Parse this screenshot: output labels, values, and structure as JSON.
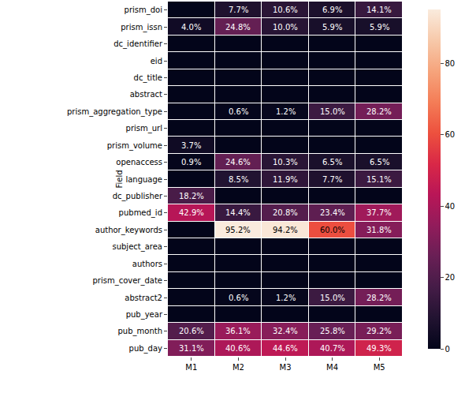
{
  "chart_data": {
    "type": "heatmap",
    "x_label": "",
    "y_label": "Field",
    "columns": [
      "M1",
      "M2",
      "M3",
      "M4",
      "M5"
    ],
    "rows": [
      "prism_doi",
      "prism_issn",
      "dc_identifier",
      "eid",
      "dc_title",
      "abstract",
      "prism_aggregation_type",
      "prism_url",
      "prism_volume",
      "openaccess",
      "language",
      "dc_publisher",
      "pubmed_id",
      "author_keywords",
      "subject_area",
      "authors",
      "prism_cover_date",
      "abstract2",
      "pub_year",
      "pub_month",
      "pub_day"
    ],
    "cells": [
      [
        0,
        7.7,
        10.6,
        6.9,
        14.1
      ],
      [
        4.0,
        24.8,
        10.0,
        5.9,
        5.9
      ],
      [
        0,
        0,
        0,
        0,
        0
      ],
      [
        0,
        0,
        0,
        0,
        0
      ],
      [
        0,
        0,
        0,
        0,
        0
      ],
      [
        0,
        0,
        0,
        0,
        0
      ],
      [
        0,
        0.6,
        1.2,
        15.0,
        28.2
      ],
      [
        0,
        0,
        0,
        0,
        0
      ],
      [
        3.7,
        0,
        0,
        0,
        0
      ],
      [
        0.9,
        24.6,
        10.3,
        6.5,
        6.5
      ],
      [
        0,
        8.5,
        11.9,
        7.7,
        15.1
      ],
      [
        18.2,
        0,
        0,
        0,
        0
      ],
      [
        42.9,
        14.4,
        20.8,
        23.4,
        37.7
      ],
      [
        0,
        95.2,
        94.2,
        60.0,
        31.8
      ],
      [
        0,
        0,
        0,
        0,
        0
      ],
      [
        0,
        0,
        0,
        0,
        0
      ],
      [
        0,
        0,
        0,
        0,
        0
      ],
      [
        0,
        0.6,
        1.2,
        15.0,
        28.2
      ],
      [
        0,
        0,
        0,
        0,
        0
      ],
      [
        20.6,
        36.1,
        32.4,
        25.8,
        29.2
      ],
      [
        31.1,
        40.6,
        44.6,
        40.7,
        49.3
      ]
    ],
    "value_labels": [
      [
        null,
        "7.7%",
        "10.6%",
        "6.9%",
        "14.1%"
      ],
      [
        "4.0%",
        "24.8%",
        "10.0%",
        "5.9%",
        "5.9%"
      ],
      [
        null,
        null,
        null,
        null,
        null
      ],
      [
        null,
        null,
        null,
        null,
        null
      ],
      [
        null,
        null,
        null,
        null,
        null
      ],
      [
        null,
        null,
        null,
        null,
        null
      ],
      [
        null,
        "0.6%",
        "1.2%",
        "15.0%",
        "28.2%"
      ],
      [
        null,
        null,
        null,
        null,
        null
      ],
      [
        "3.7%",
        null,
        null,
        null,
        null
      ],
      [
        "0.9%",
        "24.6%",
        "10.3%",
        "6.5%",
        "6.5%"
      ],
      [
        null,
        "8.5%",
        "11.9%",
        "7.7%",
        "15.1%"
      ],
      [
        "18.2%",
        null,
        null,
        null,
        null
      ],
      [
        "42.9%",
        "14.4%",
        "20.8%",
        "23.4%",
        "37.7%"
      ],
      [
        null,
        "95.2%",
        "94.2%",
        "60.0%",
        "31.8%"
      ],
      [
        null,
        null,
        null,
        null,
        null
      ],
      [
        null,
        null,
        null,
        null,
        null
      ],
      [
        null,
        null,
        null,
        null,
        null
      ],
      [
        null,
        "0.6%",
        "1.2%",
        "15.0%",
        "28.2%"
      ],
      [
        null,
        null,
        null,
        null,
        null
      ],
      [
        "20.6%",
        "36.1%",
        "32.4%",
        "25.8%",
        "29.2%"
      ],
      [
        "31.1%",
        "40.6%",
        "44.6%",
        "40.7%",
        "49.3%"
      ]
    ],
    "data_labels": true,
    "colorbar": {
      "range": [
        0,
        95.2
      ],
      "ticks": [
        0,
        20,
        40,
        60,
        80
      ]
    }
  }
}
